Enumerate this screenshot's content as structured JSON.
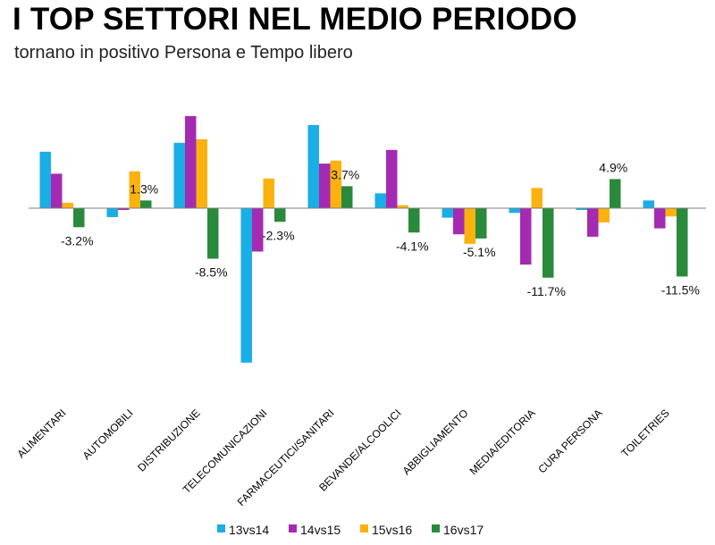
{
  "title": "I TOP SETTORI NEL MEDIO PERIODO",
  "subtitle": "tornano in positivo Persona e Tempo libero",
  "colors": {
    "13vs14": "#1aaee6",
    "14vs15": "#a52ab2",
    "15vs16": "#fbb20f",
    "16vs17": "#2a8a3b",
    "axis": "#7f7f7f"
  },
  "chart_data": {
    "type": "bar",
    "categories": [
      "ALIMENTARI",
      "AUTOMOBILI",
      "DISTRIBUZIONE",
      "TELECOMUNICAZIONI",
      "FARMACEUTICI/SANITARI",
      "BEVANDE/ALCOOLICI",
      "ABBIGLIAMENTO",
      "MEDIA/EDITORIA",
      "CURA PERSONA",
      "TOILETRIES"
    ],
    "series": [
      {
        "name": "13vs14",
        "values": [
          9.5,
          -1.5,
          11.0,
          -26.0,
          14.0,
          2.5,
          -1.6,
          -0.8,
          -0.3,
          1.3
        ]
      },
      {
        "name": "14vs15",
        "values": [
          5.8,
          -0.3,
          15.5,
          -7.3,
          7.5,
          9.8,
          -4.4,
          -9.5,
          -4.8,
          -3.4
        ]
      },
      {
        "name": "15vs16",
        "values": [
          0.9,
          6.2,
          11.6,
          5.0,
          8.0,
          0.5,
          -6.0,
          3.4,
          -2.4,
          -1.4
        ]
      },
      {
        "name": "16vs17",
        "values": [
          -3.2,
          1.3,
          -8.5,
          -2.3,
          3.7,
          -4.1,
          -5.1,
          -11.7,
          4.9,
          -11.5
        ]
      }
    ],
    "data_labels": [
      {
        "series": "16vs17",
        "category": "ALIMENTARI",
        "text": "-3.2%"
      },
      {
        "series": "16vs17",
        "category": "AUTOMOBILI",
        "text": "1.3%"
      },
      {
        "series": "16vs17",
        "category": "DISTRIBUZIONE",
        "text": "-8.5%"
      },
      {
        "series": "16vs17",
        "category": "TELECOMUNICAZIONI",
        "text": "-2.3%"
      },
      {
        "series": "16vs17",
        "category": "FARMACEUTICI/SANITARI",
        "text": "3.7%"
      },
      {
        "series": "16vs17",
        "category": "BEVANDE/ALCOOLICI",
        "text": "-4.1%"
      },
      {
        "series": "16vs17",
        "category": "ABBIGLIAMENTO",
        "text": "-5.1%"
      },
      {
        "series": "16vs17",
        "category": "MEDIA/EDITORIA",
        "text": "-11.7%"
      },
      {
        "series": "16vs17",
        "category": "CURA PERSONA",
        "text": "4.9%"
      },
      {
        "series": "16vs17",
        "category": "TOILETRIES",
        "text": "-11.5%"
      }
    ],
    "legend": [
      "13vs14",
      "14vs15",
      "15vs16",
      "16vs17"
    ],
    "legend_position": "bottom",
    "grid": false
  }
}
